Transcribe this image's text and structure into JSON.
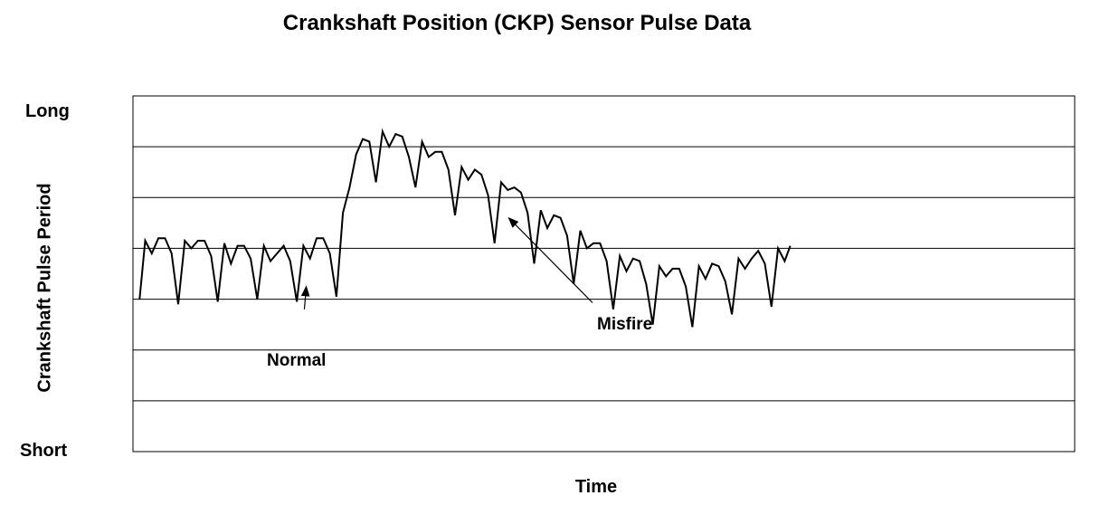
{
  "chart_data": {
    "type": "line",
    "title": "Crankshaft Position (CKP) Sensor Pulse Data",
    "xlabel": "Time",
    "ylabel": "Crankshaft Pulse Period",
    "ytick_top": "Long",
    "ytick_bottom": "Short",
    "ylim": [
      0,
      7
    ],
    "xlim": [
      0,
      100
    ],
    "grid": true,
    "line_color": "#000000",
    "series": [
      {
        "values": [
          [
            0.7,
            3.0
          ],
          [
            1.3,
            4.15
          ],
          [
            2.0,
            3.9
          ],
          [
            2.7,
            4.2
          ],
          [
            3.4,
            4.2
          ],
          [
            4.1,
            3.9
          ],
          [
            4.8,
            2.9
          ],
          [
            5.5,
            4.15
          ],
          [
            6.2,
            4.0
          ],
          [
            6.9,
            4.15
          ],
          [
            7.6,
            4.15
          ],
          [
            8.3,
            3.85
          ],
          [
            9.0,
            2.95
          ],
          [
            9.7,
            4.1
          ],
          [
            10.4,
            3.7
          ],
          [
            11.1,
            4.05
          ],
          [
            11.8,
            4.05
          ],
          [
            12.5,
            3.8
          ],
          [
            13.2,
            3.0
          ],
          [
            13.9,
            4.05
          ],
          [
            14.6,
            3.75
          ],
          [
            15.3,
            3.9
          ],
          [
            16.0,
            4.05
          ],
          [
            16.7,
            3.75
          ],
          [
            17.4,
            2.95
          ],
          [
            18.1,
            4.05
          ],
          [
            18.8,
            3.8
          ],
          [
            19.5,
            4.2
          ],
          [
            20.2,
            4.2
          ],
          [
            20.9,
            3.9
          ],
          [
            21.6,
            3.05
          ],
          [
            22.3,
            4.7
          ],
          [
            23.0,
            5.2
          ],
          [
            23.7,
            5.85
          ],
          [
            24.4,
            6.15
          ],
          [
            25.1,
            6.1
          ],
          [
            25.8,
            5.3
          ],
          [
            26.5,
            6.3
          ],
          [
            27.2,
            6.0
          ],
          [
            27.9,
            6.25
          ],
          [
            28.6,
            6.2
          ],
          [
            29.3,
            5.8
          ],
          [
            30.0,
            5.2
          ],
          [
            30.7,
            6.1
          ],
          [
            31.4,
            5.8
          ],
          [
            32.1,
            5.9
          ],
          [
            32.8,
            5.9
          ],
          [
            33.5,
            5.55
          ],
          [
            34.2,
            4.65
          ],
          [
            34.9,
            5.6
          ],
          [
            35.6,
            5.35
          ],
          [
            36.3,
            5.55
          ],
          [
            37.0,
            5.45
          ],
          [
            37.7,
            5.05
          ],
          [
            38.4,
            4.1
          ],
          [
            39.1,
            5.3
          ],
          [
            39.8,
            5.15
          ],
          [
            40.5,
            5.2
          ],
          [
            41.2,
            5.1
          ],
          [
            41.9,
            4.7
          ],
          [
            42.6,
            3.7
          ],
          [
            43.3,
            4.75
          ],
          [
            44.0,
            4.4
          ],
          [
            44.7,
            4.65
          ],
          [
            45.4,
            4.6
          ],
          [
            46.1,
            4.25
          ],
          [
            46.8,
            3.3
          ],
          [
            47.5,
            4.35
          ],
          [
            48.2,
            4.0
          ],
          [
            48.9,
            4.1
          ],
          [
            49.6,
            4.1
          ],
          [
            50.3,
            3.75
          ],
          [
            51.0,
            2.8
          ],
          [
            51.7,
            3.85
          ],
          [
            52.4,
            3.55
          ],
          [
            53.1,
            3.8
          ],
          [
            53.8,
            3.75
          ],
          [
            54.5,
            3.3
          ],
          [
            55.2,
            2.5
          ],
          [
            55.9,
            3.65
          ],
          [
            56.6,
            3.45
          ],
          [
            57.3,
            3.6
          ],
          [
            58.0,
            3.6
          ],
          [
            58.7,
            3.25
          ],
          [
            59.4,
            2.45
          ],
          [
            60.1,
            3.65
          ],
          [
            60.8,
            3.4
          ],
          [
            61.5,
            3.7
          ],
          [
            62.2,
            3.65
          ],
          [
            62.9,
            3.35
          ],
          [
            63.6,
            2.7
          ],
          [
            64.3,
            3.8
          ],
          [
            65.0,
            3.6
          ],
          [
            65.7,
            3.8
          ],
          [
            66.4,
            3.95
          ],
          [
            67.1,
            3.7
          ],
          [
            67.8,
            2.85
          ],
          [
            68.5,
            4.0
          ],
          [
            69.2,
            3.75
          ],
          [
            69.8,
            4.05
          ]
        ]
      }
    ],
    "annotations": [
      {
        "text": "Normal",
        "arrow_from": [
          18.2,
          2.8
        ],
        "arrow_to": [
          18.4,
          3.25
        ]
      },
      {
        "text": "Misfire",
        "arrow_from": [
          48.8,
          2.93
        ],
        "arrow_to": [
          39.9,
          4.6
        ]
      }
    ]
  }
}
